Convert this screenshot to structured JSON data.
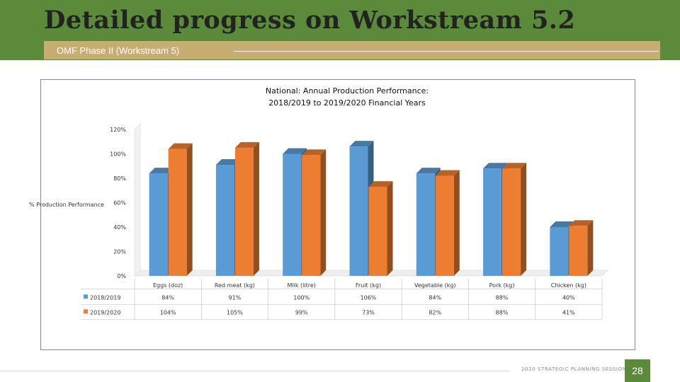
{
  "slide": {
    "title": "Detailed progress on Workstream 5.2",
    "subtitle": "OMF Phase II (Workstream 5)",
    "footer": "2020 STRATEGIC PLANNING SESSION",
    "page_number": "28",
    "colors": {
      "header_band": "#5a8a3a",
      "subtitle_bar": "#c8ad72"
    }
  },
  "chart_data": {
    "type": "bar",
    "title_line1": "National: Annual Production Performance:",
    "title_line2": "2018/2019 to 2019/2020 Financial Years",
    "ylabel": "% Production Performance",
    "ylim": [
      0,
      120
    ],
    "yticks": [
      "0%",
      "20%",
      "40%",
      "60%",
      "80%",
      "100%",
      "120%"
    ],
    "categories": [
      "Eggs (doz)",
      "Red meat (kg)",
      "Milk (litre)",
      "Fruit (kg)",
      "Vegetable (kg)",
      "Pork (kg)",
      "Chicken (kg)"
    ],
    "series": [
      {
        "name": "2018/2019",
        "values": [
          84,
          91,
          100,
          106,
          84,
          88,
          40
        ],
        "labels": [
          "84%",
          "91%",
          "100%",
          "106%",
          "84%",
          "88%",
          "40%"
        ],
        "color": "#5b9bd5"
      },
      {
        "name": "2019/2020",
        "values": [
          104,
          105,
          99,
          73,
          82,
          88,
          41
        ],
        "labels": [
          "104%",
          "105%",
          "99%",
          "73%",
          "82%",
          "88%",
          "41%"
        ],
        "color": "#ed7d31"
      }
    ],
    "grid": false,
    "legend": "data table"
  }
}
